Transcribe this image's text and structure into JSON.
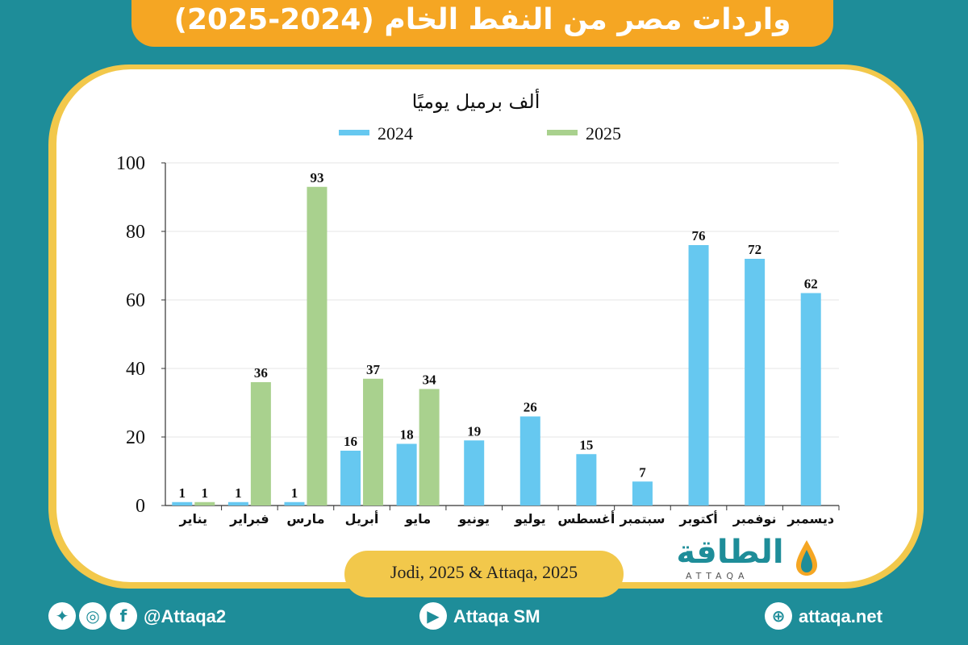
{
  "title": "واردات مصر من النفط الخام (2024-2025)",
  "source": "Jodi, 2025 & Attaqa, 2025",
  "logo": {
    "name": "الطاقة",
    "latin": "ATTAQA"
  },
  "footer": {
    "handle": "@Attaqa2",
    "youtube": "Attaqa SM",
    "website": "attaqa.net",
    "icons": [
      "twitter-icon",
      "instagram-icon",
      "facebook-icon",
      "youtube-icon",
      "globe-icon"
    ]
  },
  "colors": {
    "series_2024": "#66c8f0",
    "series_2025": "#a9d18e",
    "accent": "#f5a623",
    "background": "#1e8d99",
    "frame": "#f2c84b"
  },
  "chart_data": {
    "type": "bar",
    "title": "",
    "unit_label": "ألف برميل يوميًا",
    "ylim": [
      0,
      100
    ],
    "yticks": [
      0,
      20,
      40,
      60,
      80,
      100
    ],
    "grid": true,
    "legend": "top",
    "categories": [
      "يناير",
      "فبراير",
      "مارس",
      "أبريل",
      "مايو",
      "يونيو",
      "يوليو",
      "أغسطس",
      "سبتمبر",
      "أكتوبر",
      "نوفمبر",
      "ديسمبر"
    ],
    "series": [
      {
        "name": "2024",
        "values": [
          1,
          1,
          1,
          16,
          18,
          19,
          26,
          15,
          7,
          76,
          72,
          62
        ]
      },
      {
        "name": "2025",
        "values": [
          1,
          36,
          93,
          37,
          34,
          null,
          null,
          null,
          null,
          null,
          null,
          null
        ]
      }
    ]
  }
}
